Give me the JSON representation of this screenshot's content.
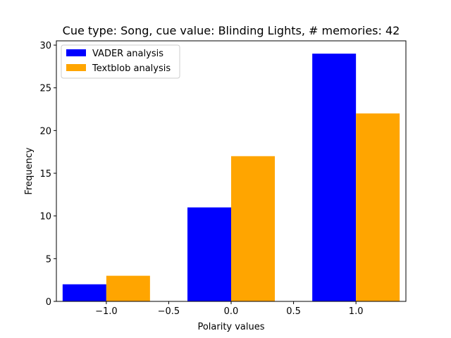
{
  "chart_data": {
    "type": "bar",
    "title": "Cue type: Song, cue value: Blinding Lights, # memories: 42",
    "xlabel": "Polarity values",
    "ylabel": "Frequency",
    "x_centers": [
      -1.0,
      0.0,
      1.0
    ],
    "xlim": [
      -1.4,
      1.4
    ],
    "ylim": [
      0,
      30.5
    ],
    "xticks": [
      -1.0,
      -0.5,
      0.0,
      0.5,
      1.0
    ],
    "xtick_labels": [
      "−1.0",
      "−0.5",
      "0.0",
      "0.5",
      "1.0"
    ],
    "yticks": [
      0,
      5,
      10,
      15,
      20,
      25,
      30
    ],
    "ytick_labels": [
      "0",
      "5",
      "10",
      "15",
      "20",
      "25",
      "30"
    ],
    "grid": false,
    "legend_position": "top-left",
    "series": [
      {
        "name": "VADER analysis",
        "color": "#0000ff",
        "values": [
          2,
          11,
          29
        ]
      },
      {
        "name": "Textblob analysis",
        "color": "#ffa500",
        "values": [
          3,
          17,
          22
        ]
      }
    ]
  }
}
